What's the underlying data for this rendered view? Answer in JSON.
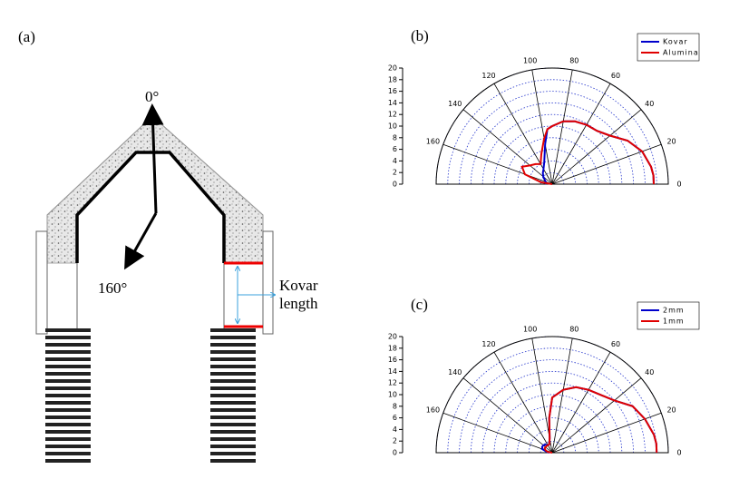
{
  "diagram": {
    "label": "(a)",
    "angle_top": "0°",
    "angle_side": "160°",
    "kovar_line1": "Kovar",
    "kovar_line2": "length"
  },
  "chart_data": [
    {
      "type": "polar",
      "panel_label": "(b)",
      "legend": "upper right",
      "x": [
        0,
        5,
        10,
        20,
        30,
        40,
        50,
        60,
        70,
        80,
        90,
        95,
        100,
        110,
        120,
        130,
        140,
        150,
        160,
        170,
        180
      ],
      "xlim": [
        0,
        180
      ],
      "xticks": [
        0,
        20,
        40,
        60,
        80,
        100,
        120,
        140,
        160
      ],
      "ylim": [
        0,
        20
      ],
      "yticks": [
        0,
        2,
        4,
        6,
        8,
        10,
        12,
        14,
        16,
        18,
        20
      ],
      "series": [
        {
          "name": "Kovar",
          "color": "#0000cc",
          "values": [
            17.5,
            17.5,
            17.3,
            16.5,
            15,
            13,
            12,
            11.8,
            11.5,
            11,
            10,
            9.5,
            7,
            4,
            3,
            2.5,
            2,
            1.5,
            1.2,
            1.2,
            1
          ]
        },
        {
          "name": "Alumina",
          "color": "#e00000",
          "values": [
            17.5,
            17.5,
            17.3,
            16.5,
            15,
            13,
            12,
            11.8,
            11.5,
            11,
            10,
            9.5,
            8,
            5.5,
            4,
            4.5,
            5,
            6,
            5,
            2,
            0
          ]
        }
      ]
    },
    {
      "type": "polar",
      "panel_label": "(c)",
      "legend": "upper right",
      "x": [
        0,
        5,
        10,
        20,
        30,
        40,
        50,
        60,
        70,
        80,
        90,
        95,
        100,
        110,
        120,
        130,
        140,
        150,
        160,
        170,
        180
      ],
      "xlim": [
        0,
        180
      ],
      "xticks": [
        0,
        20,
        40,
        60,
        80,
        100,
        120,
        140,
        160
      ],
      "ylim": [
        0,
        20
      ],
      "yticks": [
        0,
        2,
        4,
        6,
        8,
        10,
        12,
        14,
        16,
        18,
        20
      ],
      "series": [
        {
          "name": "2mm",
          "color": "#0000cc",
          "values": [
            18,
            18,
            17.8,
            17,
            16,
            14,
            13,
            12.5,
            12,
            11,
            9.5,
            6,
            2.5,
            1.5,
            1.5,
            1.8,
            2,
            2,
            1.8,
            1,
            0.5
          ]
        },
        {
          "name": "1mm",
          "color": "#e00000",
          "values": [
            18,
            18,
            17.8,
            17,
            16,
            14,
            13,
            12.5,
            12,
            11,
            9.5,
            6,
            2.5,
            1.5,
            1.5,
            1.5,
            1.5,
            1.5,
            1.2,
            0.8,
            0
          ]
        }
      ]
    }
  ]
}
